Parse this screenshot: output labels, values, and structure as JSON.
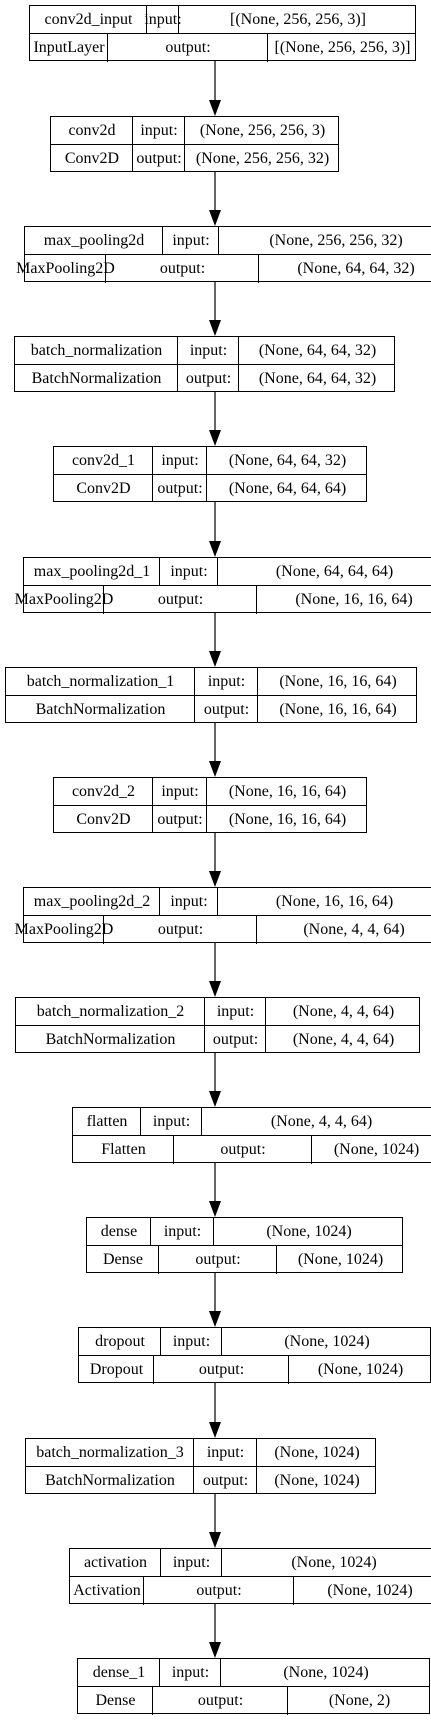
{
  "diagram": {
    "input_label": "input:",
    "output_label": "output:",
    "layers": [
      {
        "name": "conv2d_input",
        "type": "InputLayer",
        "input": "[(None, 256, 256, 3)]",
        "output": "[(None, 256, 256, 3)]"
      },
      {
        "name": "conv2d",
        "type": "Conv2D",
        "input": "(None, 256, 256, 3)",
        "output": "(None, 256, 256, 32)"
      },
      {
        "name": "max_pooling2d",
        "type": "MaxPooling2D",
        "input": "(None, 256, 256, 32)",
        "output": "(None, 64, 64, 32)"
      },
      {
        "name": "batch_normalization",
        "type": "BatchNormalization",
        "input": "(None, 64, 64, 32)",
        "output": "(None, 64, 64, 32)"
      },
      {
        "name": "conv2d_1",
        "type": "Conv2D",
        "input": "(None, 64, 64, 32)",
        "output": "(None, 64, 64, 64)"
      },
      {
        "name": "max_pooling2d_1",
        "type": "MaxPooling2D",
        "input": "(None, 64, 64, 64)",
        "output": "(None, 16, 16, 64)"
      },
      {
        "name": "batch_normalization_1",
        "type": "BatchNormalization",
        "input": "(None, 16, 16, 64)",
        "output": "(None, 16, 16, 64)"
      },
      {
        "name": "conv2d_2",
        "type": "Conv2D",
        "input": "(None, 16, 16, 64)",
        "output": "(None, 16, 16, 64)"
      },
      {
        "name": "max_pooling2d_2",
        "type": "MaxPooling2D",
        "input": "(None, 16, 16, 64)",
        "output": "(None, 4, 4, 64)"
      },
      {
        "name": "batch_normalization_2",
        "type": "BatchNormalization",
        "input": "(None, 4, 4, 64)",
        "output": "(None, 4, 4, 64)"
      },
      {
        "name": "flatten",
        "type": "Flatten",
        "input": "(None, 4, 4, 64)",
        "output": "(None, 1024)"
      },
      {
        "name": "dense",
        "type": "Dense",
        "input": "(None, 1024)",
        "output": "(None, 1024)"
      },
      {
        "name": "dropout",
        "type": "Dropout",
        "input": "(None, 1024)",
        "output": "(None, 1024)"
      },
      {
        "name": "batch_normalization_3",
        "type": "BatchNormalization",
        "input": "(None, 1024)",
        "output": "(None, 1024)"
      },
      {
        "name": "activation",
        "type": "Activation",
        "input": "(None, 1024)",
        "output": "(None, 1024)"
      },
      {
        "name": "dense_1",
        "type": "Dense",
        "input": "(None, 1024)",
        "output": "(None, 2)"
      }
    ]
  }
}
